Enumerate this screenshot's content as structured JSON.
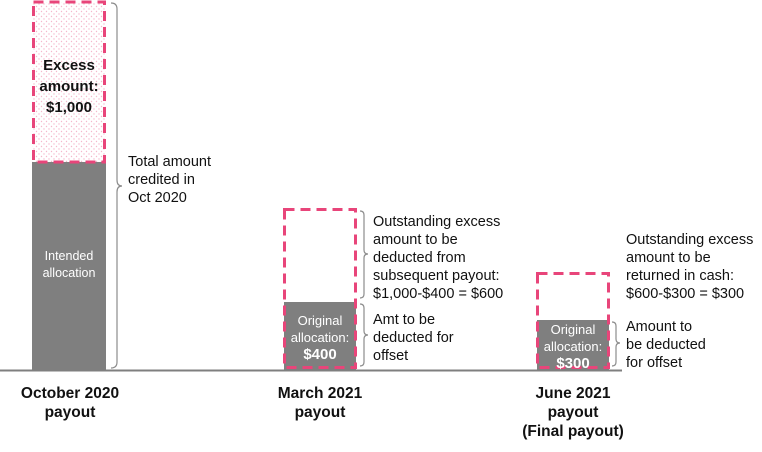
{
  "colors": {
    "bar_fill": "#7f7f7f",
    "dash_outline": "#e8457a",
    "baseline": "#7f7f7f",
    "bracket": "#8c8c8c",
    "dot_pattern": "#f4b8cc"
  },
  "columns": [
    {
      "label": "October 2020\npayout",
      "bar_label": "Intended\nallocation",
      "excess_label": "Excess\namount:\n$1,000"
    },
    {
      "label": "March 2021\npayout",
      "bar_label_small": "Original\nallocation:",
      "bar_label_value": "$400"
    },
    {
      "label": "June 2021\npayout\n(Final payout)",
      "bar_label_small": "Original\nallocation:",
      "bar_label_value": "$300"
    }
  ],
  "notes": {
    "total_credited": "Total amount\ncredited in\nOct 2020",
    "march_excess": "Outstanding excess\namount to be\ndeducted from\nsubsequent payout:\n$1,000-$400 = $600",
    "march_offset": "Amt to be\ndeducted for\noffset",
    "june_excess": "Outstanding excess\namount to be\nreturned in cash:\n$600-$300 = $300",
    "june_offset": "Amount to\nbe deducted\nfor offset"
  }
}
